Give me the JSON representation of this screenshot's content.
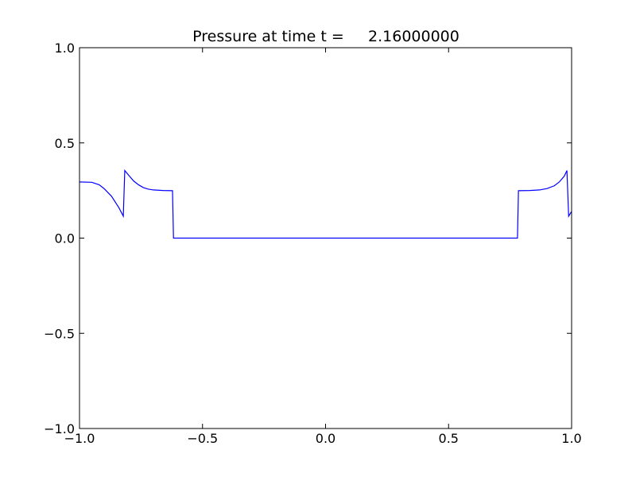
{
  "chart_data": {
    "type": "line",
    "title": "Pressure at time t =     2.16000000",
    "x": [
      -1,
      -0.95,
      -0.92,
      -0.9,
      -0.87,
      -0.84,
      -0.822,
      -0.816,
      -0.8,
      -0.78,
      -0.76,
      -0.74,
      -0.72,
      -0.7,
      -0.66,
      -0.622,
      -0.618,
      0.78,
      0.784,
      0.83,
      0.87,
      0.9,
      0.93,
      0.95,
      0.97,
      0.981,
      0.988,
      1.0
    ],
    "series": [
      {
        "color": "#0000ff",
        "values": [
          0.295,
          0.293,
          0.28,
          0.26,
          0.22,
          0.16,
          0.115,
          0.355,
          0.33,
          0.3,
          0.28,
          0.265,
          0.257,
          0.253,
          0.25,
          0.249,
          0,
          0,
          0.249,
          0.25,
          0.253,
          0.26,
          0.275,
          0.295,
          0.325,
          0.355,
          0.115,
          0.14
        ]
      }
    ],
    "xlim": [
      -1,
      1
    ],
    "ylim": [
      -1,
      1
    ],
    "xticks": [
      {
        "value": -1,
        "label": "−1.0"
      },
      {
        "value": -0.5,
        "label": "−0.5"
      },
      {
        "value": 0,
        "label": "0.0"
      },
      0.5,
      {
        "value": 1,
        "label": "1.0"
      }
    ],
    "yticks": [
      {
        "value": -1,
        "label": "−1.0"
      },
      {
        "value": -0.5,
        "label": "−0.5"
      },
      {
        "value": 0,
        "label": "0.0"
      },
      0.5,
      {
        "value": 1,
        "label": "1.0"
      }
    ],
    "grid": false
  }
}
